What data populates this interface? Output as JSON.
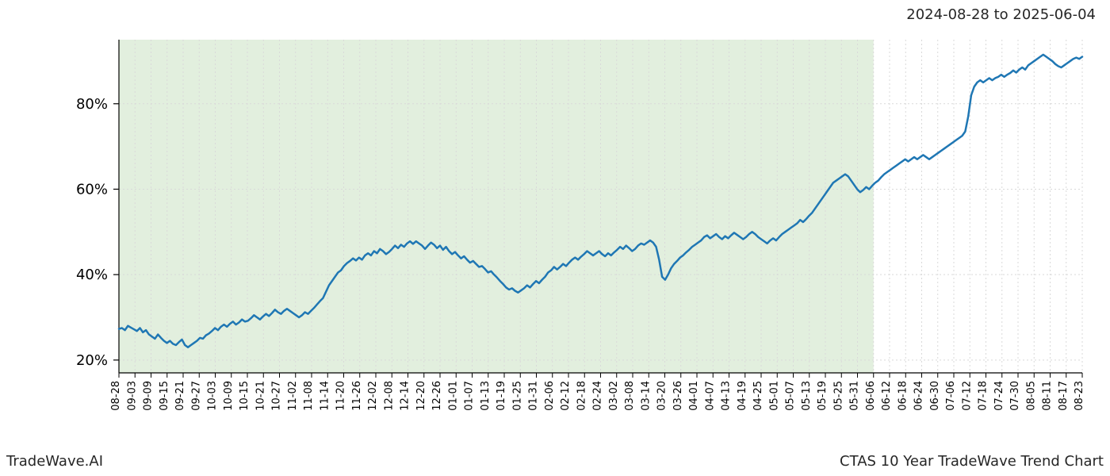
{
  "date_range": "2024-08-28 to 2025-06-04",
  "footer_left": "TradeWave.AI",
  "footer_right": "CTAS 10 Year TradeWave Trend Chart",
  "chart": {
    "type": "line",
    "background_color": "#ffffff",
    "line_color": "#1f77b4",
    "line_width": 2.5,
    "shade_fill": "#e2efde",
    "shade_opacity": 1.0,
    "grid_color": "#d9d9d9",
    "axis_color": "#000000",
    "tick_color": "#000000",
    "tick_font_size": 13,
    "ylabel_font_size": 18,
    "ylim": [
      17,
      95
    ],
    "yticks": [
      20,
      40,
      60,
      80
    ],
    "ytick_labels": [
      "20%",
      "40%",
      "60%",
      "80%"
    ],
    "xticks": [
      "08-28",
      "09-03",
      "09-09",
      "09-15",
      "09-21",
      "09-27",
      "10-03",
      "10-09",
      "10-15",
      "10-21",
      "10-27",
      "11-02",
      "11-08",
      "11-14",
      "11-20",
      "11-26",
      "12-02",
      "12-08",
      "12-14",
      "12-20",
      "12-26",
      "01-01",
      "01-07",
      "01-13",
      "01-19",
      "01-25",
      "01-31",
      "02-06",
      "02-12",
      "02-18",
      "02-24",
      "03-02",
      "03-08",
      "03-14",
      "03-20",
      "03-26",
      "04-01",
      "04-07",
      "04-13",
      "04-19",
      "04-25",
      "05-01",
      "05-07",
      "05-13",
      "05-19",
      "05-25",
      "05-31",
      "06-06",
      "06-12",
      "06-18",
      "06-24",
      "06-30",
      "07-06",
      "07-12",
      "07-18",
      "07-24",
      "07-30",
      "08-05",
      "08-11",
      "08-17",
      "08-23"
    ],
    "x_index_range": [
      0,
      60
    ],
    "shaded_x_range": [
      0,
      47
    ],
    "series": [
      27.3,
      27.5,
      27.0,
      28.0,
      27.6,
      27.2,
      26.8,
      27.5,
      26.5,
      27.0,
      26.0,
      25.5,
      25.0,
      26.0,
      25.2,
      24.5,
      24.0,
      24.5,
      23.8,
      23.5,
      24.2,
      24.8,
      23.5,
      23.0,
      23.5,
      24.0,
      24.5,
      25.2,
      25.0,
      25.8,
      26.2,
      26.8,
      27.5,
      27.0,
      27.8,
      28.3,
      27.8,
      28.5,
      29.0,
      28.3,
      28.8,
      29.5,
      29.0,
      29.2,
      29.8,
      30.5,
      30.0,
      29.5,
      30.2,
      30.8,
      30.3,
      31.0,
      31.8,
      31.2,
      30.8,
      31.5,
      32.0,
      31.5,
      31.0,
      30.5,
      30.0,
      30.5,
      31.2,
      30.8,
      31.5,
      32.2,
      33.0,
      33.8,
      34.5,
      36.0,
      37.5,
      38.5,
      39.5,
      40.5,
      41.0,
      42.0,
      42.7,
      43.2,
      43.8,
      43.3,
      44.0,
      43.5,
      44.5,
      45.0,
      44.5,
      45.5,
      45.0,
      46.0,
      45.5,
      44.8,
      45.3,
      46.0,
      46.8,
      46.2,
      47.0,
      46.5,
      47.3,
      47.8,
      47.2,
      47.8,
      47.3,
      46.8,
      46.0,
      46.8,
      47.5,
      47.0,
      46.2,
      46.8,
      45.8,
      46.5,
      45.5,
      44.8,
      45.3,
      44.5,
      43.8,
      44.3,
      43.5,
      42.8,
      43.2,
      42.5,
      41.8,
      42.0,
      41.3,
      40.5,
      40.8,
      40.0,
      39.3,
      38.5,
      37.8,
      37.0,
      36.5,
      36.8,
      36.2,
      35.8,
      36.3,
      36.8,
      37.5,
      37.0,
      37.8,
      38.5,
      38.0,
      38.8,
      39.5,
      40.5,
      41.0,
      41.8,
      41.2,
      41.8,
      42.5,
      42.0,
      42.8,
      43.5,
      44.0,
      43.5,
      44.2,
      44.8,
      45.5,
      45.0,
      44.5,
      45.0,
      45.5,
      44.8,
      44.3,
      45.0,
      44.5,
      45.2,
      45.8,
      46.5,
      46.0,
      46.8,
      46.2,
      45.5,
      46.0,
      46.8,
      47.3,
      47.0,
      47.5,
      48.0,
      47.5,
      46.5,
      43.5,
      39.5,
      38.8,
      40.0,
      41.5,
      42.5,
      43.2,
      44.0,
      44.5,
      45.2,
      45.8,
      46.5,
      47.0,
      47.5,
      48.0,
      48.8,
      49.2,
      48.5,
      49.0,
      49.5,
      48.8,
      48.3,
      49.0,
      48.5,
      49.2,
      49.8,
      49.3,
      48.8,
      48.3,
      48.8,
      49.5,
      50.0,
      49.5,
      48.8,
      48.3,
      47.8,
      47.3,
      48.0,
      48.5,
      48.0,
      48.8,
      49.5,
      50.0,
      50.5,
      51.0,
      51.5,
      52.0,
      52.8,
      52.3,
      53.0,
      53.8,
      54.5,
      55.5,
      56.5,
      57.5,
      58.5,
      59.5,
      60.5,
      61.5,
      62.0,
      62.5,
      63.0,
      63.5,
      63.0,
      62.0,
      61.0,
      60.0,
      59.3,
      59.8,
      60.5,
      60.0,
      60.8,
      61.5,
      62.0,
      62.8,
      63.5,
      64.0,
      64.5,
      65.0,
      65.5,
      66.0,
      66.5,
      67.0,
      66.5,
      67.0,
      67.5,
      67.0,
      67.5,
      68.0,
      67.5,
      67.0,
      67.5,
      68.0,
      68.5,
      69.0,
      69.5,
      70.0,
      70.5,
      71.0,
      71.5,
      72.0,
      72.5,
      73.5,
      77.0,
      82.0,
      84.0,
      85.0,
      85.5,
      85.0,
      85.5,
      86.0,
      85.5,
      86.0,
      86.3,
      86.8,
      86.3,
      86.8,
      87.2,
      87.8,
      87.3,
      88.0,
      88.5,
      88.0,
      89.0,
      89.5,
      90.0,
      90.5,
      91.0,
      91.5,
      91.0,
      90.5,
      90.0,
      89.3,
      88.8,
      88.5,
      89.0,
      89.5,
      90.0,
      90.5,
      90.8,
      90.5,
      91.0
    ]
  }
}
